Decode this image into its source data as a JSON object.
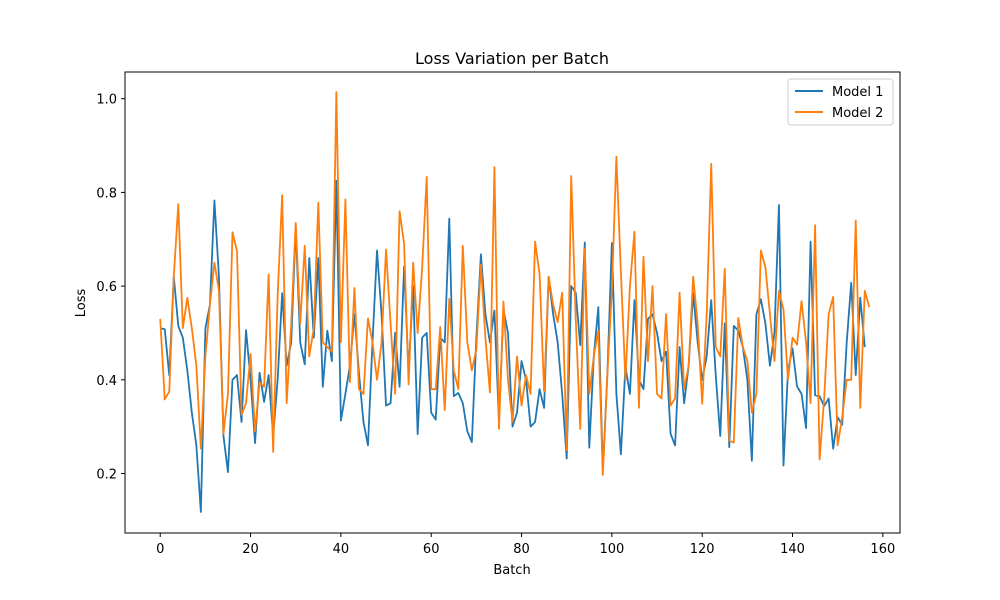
{
  "chart_data": {
    "type": "line",
    "title": "Loss Variation per Batch",
    "xlabel": "Batch",
    "ylabel": "Loss",
    "xlim": [
      -7.8,
      163.8
    ],
    "ylim": [
      0.073,
      1.057
    ],
    "xticks": [
      0,
      20,
      40,
      60,
      80,
      100,
      120,
      140,
      160
    ],
    "yticks": [
      0.2,
      0.4,
      0.6,
      0.8,
      1.0
    ],
    "grid": false,
    "legend_position": "top-right",
    "series": [
      {
        "name": "Model 1",
        "color": "#1f77b4",
        "x_start": 0,
        "values": [
          0.51,
          0.508,
          0.41,
          0.62,
          0.515,
          0.49,
          0.42,
          0.33,
          0.26,
          0.118,
          0.51,
          0.56,
          0.783,
          0.62,
          0.28,
          0.203,
          0.4,
          0.41,
          0.31,
          0.506,
          0.4,
          0.265,
          0.415,
          0.353,
          0.41,
          0.28,
          0.4,
          0.585,
          0.43,
          0.48,
          0.726,
          0.48,
          0.433,
          0.66,
          0.49,
          0.66,
          0.385,
          0.505,
          0.44,
          0.825,
          0.313,
          0.37,
          0.43,
          0.54,
          0.415,
          0.31,
          0.26,
          0.48,
          0.676,
          0.54,
          0.345,
          0.35,
          0.5,
          0.385,
          0.642,
          0.417,
          0.6,
          0.284,
          0.49,
          0.5,
          0.33,
          0.315,
          0.49,
          0.48,
          0.744,
          0.365,
          0.372,
          0.35,
          0.29,
          0.267,
          0.49,
          0.668,
          0.54,
          0.48,
          0.548,
          0.312,
          0.55,
          0.5,
          0.3,
          0.33,
          0.44,
          0.4,
          0.3,
          0.31,
          0.38,
          0.34,
          0.62,
          0.54,
          0.48,
          0.37,
          0.232,
          0.6,
          0.586,
          0.474,
          0.693,
          0.255,
          0.45,
          0.555,
          0.205,
          0.41,
          0.692,
          0.37,
          0.241,
          0.428,
          0.37,
          0.57,
          0.4,
          0.38,
          0.53,
          0.54,
          0.5,
          0.44,
          0.46,
          0.285,
          0.26,
          0.47,
          0.35,
          0.43,
          0.585,
          0.48,
          0.4,
          0.45,
          0.57,
          0.41,
          0.28,
          0.52,
          0.256,
          0.515,
          0.505,
          0.47,
          0.4,
          0.227,
          0.54,
          0.572,
          0.52,
          0.43,
          0.5,
          0.773,
          0.217,
          0.42,
          0.467,
          0.386,
          0.37,
          0.297,
          0.695,
          0.367,
          0.365,
          0.344,
          0.36,
          0.253,
          0.32,
          0.304,
          0.48,
          0.607,
          0.41,
          0.575,
          0.47
        ]
      },
      {
        "name": "Model 2",
        "color": "#ff7f0e",
        "x_start": 0,
        "values": [
          0.53,
          0.358,
          0.375,
          0.62,
          0.775,
          0.51,
          0.575,
          0.51,
          0.43,
          0.253,
          0.45,
          0.56,
          0.65,
          0.59,
          0.285,
          0.37,
          0.715,
          0.675,
          0.325,
          0.35,
          0.455,
          0.29,
          0.395,
          0.385,
          0.625,
          0.246,
          0.58,
          0.794,
          0.35,
          0.52,
          0.735,
          0.52,
          0.686,
          0.45,
          0.51,
          0.778,
          0.48,
          0.47,
          0.46,
          1.014,
          0.48,
          0.785,
          0.395,
          0.596,
          0.38,
          0.37,
          0.531,
          0.48,
          0.4,
          0.48,
          0.678,
          0.52,
          0.37,
          0.76,
          0.69,
          0.39,
          0.65,
          0.5,
          0.64,
          0.833,
          0.38,
          0.38,
          0.513,
          0.335,
          0.573,
          0.42,
          0.38,
          0.686,
          0.48,
          0.42,
          0.465,
          0.646,
          0.49,
          0.373,
          0.854,
          0.295,
          0.567,
          0.4,
          0.31,
          0.45,
          0.345,
          0.41,
          0.37,
          0.695,
          0.625,
          0.375,
          0.62,
          0.56,
          0.523,
          0.586,
          0.25,
          0.835,
          0.53,
          0.295,
          0.68,
          0.37,
          0.45,
          0.505,
          0.197,
          0.41,
          0.59,
          0.876,
          0.63,
          0.4,
          0.6,
          0.716,
          0.34,
          0.663,
          0.44,
          0.6,
          0.37,
          0.36,
          0.54,
          0.345,
          0.36,
          0.586,
          0.38,
          0.43,
          0.62,
          0.52,
          0.349,
          0.54,
          0.861,
          0.47,
          0.45,
          0.637,
          0.27,
          0.266,
          0.532,
          0.47,
          0.44,
          0.33,
          0.37,
          0.676,
          0.64,
          0.54,
          0.44,
          0.59,
          0.55,
          0.4,
          0.49,
          0.475,
          0.568,
          0.48,
          0.35,
          0.73,
          0.23,
          0.36,
          0.54,
          0.577,
          0.26,
          0.32,
          0.4,
          0.4,
          0.74,
          0.34,
          0.59,
          0.555
        ]
      }
    ]
  }
}
